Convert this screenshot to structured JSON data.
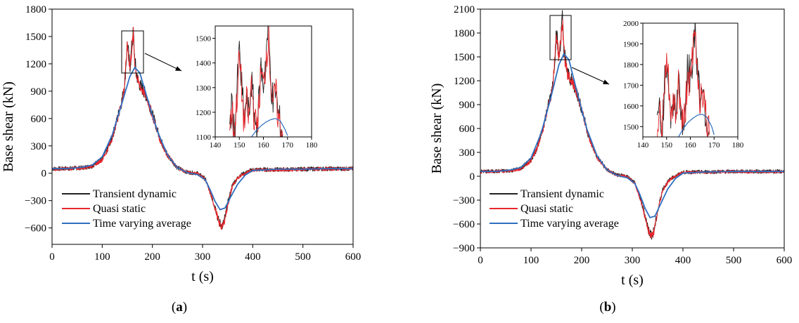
{
  "chart_data": [
    {
      "type": "line",
      "panel_label": "a",
      "xlabel": "t (s)",
      "ylabel": "Base shear (kN)",
      "xlim": [
        0,
        600
      ],
      "ylim": [
        -780,
        1800
      ],
      "xticks": [
        0,
        100,
        200,
        300,
        400,
        500,
        600
      ],
      "yticks": [
        -600,
        -300,
        0,
        300,
        600,
        900,
        1200,
        1500,
        1800
      ],
      "legend": {
        "position": "bottom-left",
        "entries": [
          {
            "label": "Transient dynamic",
            "color": "#222222"
          },
          {
            "label": "Quasi static",
            "color": "#e8262b"
          },
          {
            "label": "Time varying average",
            "color": "#2e6fc0"
          }
        ]
      },
      "series": [
        {
          "name": "Transient dynamic",
          "x": [
            0,
            20,
            40,
            60,
            80,
            95,
            100,
            110,
            120,
            130,
            140,
            145,
            150,
            155,
            158,
            162,
            165,
            168,
            172,
            178,
            185,
            190,
            200,
            215,
            230,
            250,
            270,
            290,
            305,
            315,
            322,
            328,
            332,
            336,
            340,
            345,
            350,
            360,
            375,
            400,
            450,
            500,
            550,
            600
          ],
          "y": [
            50,
            50,
            55,
            60,
            80,
            140,
            160,
            260,
            400,
            600,
            820,
            1000,
            1440,
            1150,
            1330,
            1540,
            1230,
            1100,
            1000,
            940,
            880,
            820,
            650,
            380,
            200,
            60,
            10,
            0,
            -60,
            -200,
            -320,
            -420,
            -520,
            -560,
            -580,
            -480,
            -340,
            -120,
            -20,
            40,
            40,
            45,
            50,
            50
          ]
        },
        {
          "name": "Quasi static",
          "x": [
            0,
            20,
            40,
            60,
            80,
            95,
            100,
            110,
            120,
            130,
            140,
            145,
            150,
            155,
            158,
            162,
            165,
            168,
            172,
            178,
            185,
            190,
            200,
            215,
            230,
            250,
            270,
            290,
            305,
            315,
            322,
            328,
            332,
            336,
            340,
            345,
            350,
            360,
            375,
            400,
            450,
            500,
            550,
            600
          ],
          "y": [
            45,
            48,
            52,
            58,
            78,
            130,
            150,
            250,
            390,
            590,
            800,
            980,
            1420,
            1160,
            1310,
            1520,
            1200,
            1080,
            990,
            930,
            870,
            810,
            640,
            370,
            195,
            58,
            8,
            -2,
            -65,
            -210,
            -330,
            -440,
            -540,
            -575,
            -590,
            -490,
            -350,
            -130,
            -25,
            38,
            38,
            43,
            48,
            48
          ]
        },
        {
          "name": "Time varying average",
          "x": [
            0,
            20,
            40,
            60,
            80,
            100,
            120,
            140,
            155,
            165,
            175,
            190,
            210,
            230,
            250,
            270,
            290,
            305,
            315,
            325,
            335,
            345,
            355,
            370,
            385,
            400,
            450,
            500,
            550,
            600
          ],
          "y": [
            50,
            50,
            55,
            65,
            90,
            180,
            420,
            780,
            1060,
            1160,
            1100,
            820,
            460,
            200,
            60,
            5,
            -15,
            -70,
            -180,
            -310,
            -400,
            -380,
            -270,
            -120,
            -20,
            30,
            45,
            45,
            50,
            50
          ]
        }
      ],
      "inset": {
        "xlim": [
          140,
          180
        ],
        "ylim": [
          1100,
          1550
        ],
        "xticks": [
          140,
          150,
          160,
          170,
          180
        ],
        "yticks": [
          1100,
          1200,
          1300,
          1400,
          1500
        ],
        "series": [
          {
            "name": "Transient dynamic",
            "x": [
              146,
              147,
              148,
              149,
              150,
              151,
              152,
              153,
              154,
              155,
              156,
              157,
              158,
              159,
              160,
              161,
              162,
              163,
              164,
              165,
              166,
              167,
              168
            ],
            "y": [
              1150,
              1230,
              1110,
              1280,
              1440,
              1300,
              1160,
              1250,
              1180,
              1330,
              1210,
              1140,
              1220,
              1380,
              1310,
              1420,
              1545,
              1350,
              1230,
              1300,
              1200,
              1150,
              1110
            ]
          },
          {
            "name": "Quasi static",
            "x": [
              146,
              147,
              148,
              149,
              150,
              151,
              152,
              153,
              154,
              155,
              156,
              157,
              158,
              159,
              160,
              161,
              162,
              163,
              164,
              165,
              166,
              167,
              168
            ],
            "y": [
              1140,
              1210,
              1105,
              1260,
              1420,
              1290,
              1150,
              1240,
              1170,
              1320,
              1200,
              1135,
              1210,
              1360,
              1300,
              1410,
              1520,
              1340,
              1220,
              1290,
              1190,
              1140,
              1105
            ]
          },
          {
            "name": "Time varying average",
            "x": [
              155,
              157,
              159,
              161,
              163,
              165,
              167,
              169,
              170
            ],
            "y": [
              1100,
              1125,
              1145,
              1160,
              1170,
              1175,
              1165,
              1130,
              1105
            ]
          }
        ]
      }
    },
    {
      "type": "line",
      "panel_label": "b",
      "xlabel": "t (s)",
      "ylabel": "Base shear (kN)",
      "xlim": [
        0,
        600
      ],
      "ylim": [
        -900,
        2100
      ],
      "xticks": [
        0,
        100,
        200,
        300,
        400,
        500,
        600
      ],
      "yticks": [
        -900,
        -600,
        -300,
        0,
        300,
        600,
        900,
        1200,
        1500,
        1800,
        2100
      ],
      "legend": {
        "position": "bottom-left",
        "entries": [
          {
            "label": "Transient dynamic",
            "color": "#222222"
          },
          {
            "label": "Quasi static",
            "color": "#e8262b"
          },
          {
            "label": "Time varying average",
            "color": "#2e6fc0"
          }
        ]
      },
      "series": [
        {
          "name": "Transient dynamic",
          "x": [
            0,
            20,
            40,
            60,
            80,
            95,
            100,
            110,
            120,
            130,
            140,
            145,
            150,
            155,
            158,
            162,
            165,
            168,
            172,
            178,
            185,
            190,
            200,
            215,
            230,
            250,
            270,
            290,
            305,
            315,
            322,
            328,
            332,
            336,
            340,
            345,
            350,
            360,
            375,
            400,
            450,
            500,
            550,
            600
          ],
          "y": [
            60,
            60,
            65,
            70,
            100,
            180,
            210,
            330,
            520,
            780,
            1050,
            1300,
            1830,
            1480,
            1680,
            1980,
            1600,
            1450,
            1300,
            1220,
            1140,
            1060,
            840,
            480,
            250,
            80,
            15,
            0,
            -80,
            -260,
            -420,
            -560,
            -680,
            -720,
            -740,
            -620,
            -440,
            -160,
            -30,
            50,
            55,
            60,
            60,
            60
          ]
        },
        {
          "name": "Quasi static",
          "x": [
            0,
            20,
            40,
            60,
            80,
            95,
            100,
            110,
            120,
            130,
            140,
            145,
            150,
            155,
            158,
            162,
            165,
            168,
            172,
            178,
            185,
            190,
            200,
            215,
            230,
            250,
            270,
            290,
            305,
            315,
            322,
            328,
            332,
            336,
            340,
            345,
            350,
            360,
            375,
            400,
            450,
            500,
            550,
            600
          ],
          "y": [
            55,
            58,
            62,
            68,
            95,
            170,
            200,
            320,
            505,
            760,
            1030,
            1280,
            1800,
            1490,
            1660,
            1950,
            1570,
            1430,
            1290,
            1210,
            1130,
            1050,
            830,
            470,
            245,
            78,
            12,
            -3,
            -85,
            -270,
            -430,
            -575,
            -700,
            -735,
            -750,
            -630,
            -450,
            -170,
            -35,
            48,
            52,
            58,
            58,
            58
          ]
        },
        {
          "name": "Time varying average",
          "x": [
            0,
            20,
            40,
            60,
            80,
            100,
            120,
            140,
            155,
            165,
            175,
            190,
            210,
            230,
            250,
            270,
            290,
            305,
            315,
            325,
            335,
            345,
            355,
            370,
            385,
            400,
            450,
            500,
            550,
            600
          ],
          "y": [
            60,
            60,
            65,
            80,
            110,
            230,
            540,
            1010,
            1400,
            1540,
            1460,
            1080,
            600,
            260,
            80,
            10,
            -20,
            -90,
            -230,
            -400,
            -520,
            -500,
            -360,
            -160,
            -30,
            40,
            55,
            60,
            60,
            60
          ]
        }
      ],
      "inset": {
        "xlim": [
          140,
          180
        ],
        "ylim": [
          1450,
          2000
        ],
        "xticks": [
          140,
          150,
          160,
          170,
          180
        ],
        "yticks": [
          1500,
          1600,
          1700,
          1800,
          1900,
          2000
        ],
        "series": [
          {
            "name": "Transient dynamic",
            "x": [
              146,
              147,
              148,
              149,
              150,
              151,
              152,
              153,
              154,
              155,
              156,
              157,
              158,
              159,
              160,
              161,
              162,
              163,
              164,
              165,
              166,
              167,
              168
            ],
            "y": [
              1480,
              1600,
              1470,
              1660,
              1840,
              1690,
              1520,
              1640,
              1560,
              1730,
              1600,
              1500,
              1620,
              1800,
              1720,
              1860,
              1980,
              1790,
              1640,
              1720,
              1600,
              1520,
              1470
            ]
          },
          {
            "name": "Quasi static",
            "x": [
              146,
              147,
              148,
              149,
              150,
              151,
              152,
              153,
              154,
              155,
              156,
              157,
              158,
              159,
              160,
              161,
              162,
              163,
              164,
              165,
              166,
              167,
              168
            ],
            "y": [
              1470,
              1580,
              1460,
              1640,
              1810,
              1680,
              1510,
              1630,
              1550,
              1710,
              1590,
              1490,
              1600,
              1780,
              1700,
              1840,
              1950,
              1770,
              1630,
              1700,
              1590,
              1510,
              1460
            ]
          },
          {
            "name": "Time varying average",
            "x": [
              155,
              157,
              159,
              161,
              163,
              165,
              167,
              169,
              170
            ],
            "y": [
              1450,
              1490,
              1520,
              1540,
              1555,
              1560,
              1545,
              1500,
              1460
            ]
          }
        ]
      }
    }
  ]
}
